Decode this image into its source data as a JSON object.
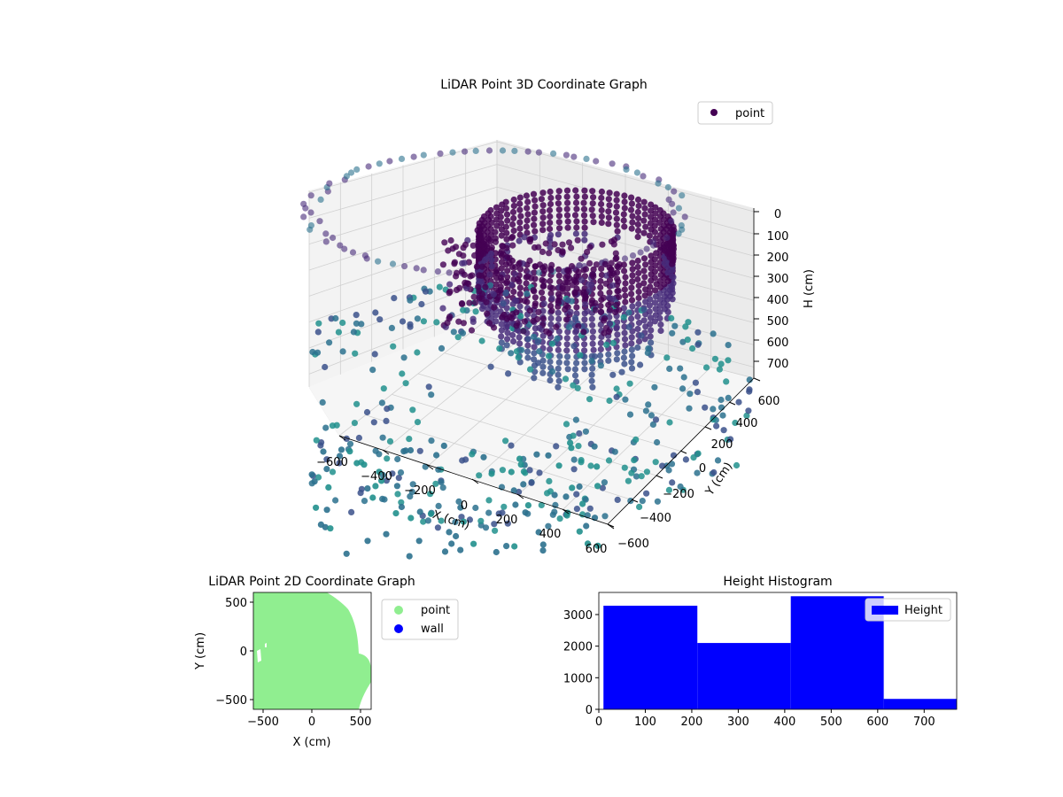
{
  "chart_data": [
    {
      "type": "scatter3d",
      "title": "LiDAR Point 3D Coordinate Graph",
      "xlabel": "X (cm)",
      "ylabel": "Y (cm)",
      "zlabel": "H (cm)",
      "xlim": [
        -600,
        600
      ],
      "ylim": [
        -600,
        600
      ],
      "zlim": [
        0,
        750
      ],
      "z_axis_inverted": true,
      "x_ticks": [
        "−600",
        "−400",
        "−200",
        "0",
        "200",
        "400",
        "600"
      ],
      "y_ticks": [
        "−600",
        "−400",
        "−200",
        "0",
        "200",
        "400",
        "600"
      ],
      "z_ticks": [
        "0",
        "100",
        "200",
        "300",
        "400",
        "500",
        "600",
        "700"
      ],
      "colormap": "viridis",
      "grid": true,
      "legend": {
        "placement": "top-right",
        "entries": [
          "point"
        ]
      },
      "series": [
        {
          "name": "point",
          "color": "#440154"
        }
      ]
    },
    {
      "type": "scatter",
      "title": "LiDAR Point 2D Coordinate Graph",
      "xlabel": "X (cm)",
      "ylabel": "Y (cm)",
      "xlim": [
        -600,
        600
      ],
      "ylim": [
        -600,
        600
      ],
      "x_ticks": [
        "−500",
        "0",
        "500"
      ],
      "y_ticks": [
        "−500",
        "0",
        "500"
      ],
      "legend": {
        "placement": "outside-right",
        "entries": [
          "point",
          "wall"
        ]
      },
      "series": [
        {
          "name": "point",
          "color": "#90ee90"
        },
        {
          "name": "wall",
          "color": "#0000ff"
        }
      ]
    },
    {
      "type": "histogram",
      "title": "Height Histogram",
      "xlim": [
        0,
        770
      ],
      "ylim": [
        0,
        3700
      ],
      "x_ticks": [
        "0",
        "100",
        "200",
        "300",
        "400",
        "500",
        "600",
        "700"
      ],
      "y_ticks": [
        "0",
        "1000",
        "2000",
        "3000"
      ],
      "bins": [
        {
          "start": 10,
          "end": 212,
          "count": 3280
        },
        {
          "start": 212,
          "end": 413,
          "count": 2100
        },
        {
          "start": 413,
          "end": 613,
          "count": 3580
        },
        {
          "start": 613,
          "end": 770,
          "count": 330
        }
      ],
      "legend": {
        "placement": "top-right",
        "entries": [
          "Height"
        ]
      },
      "series": [
        {
          "name": "Height",
          "color": "#0000ff"
        }
      ]
    }
  ]
}
